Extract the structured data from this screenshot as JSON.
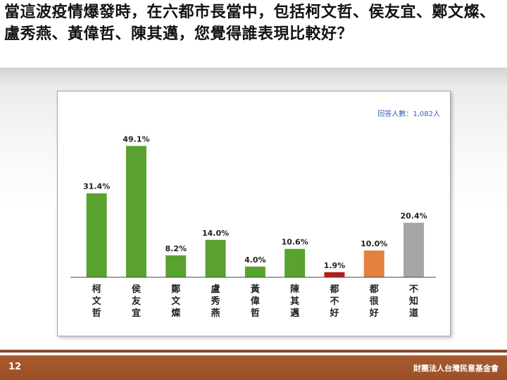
{
  "question": "當這波疫情爆發時，在六都市長當中，包括柯文哲、侯友宜、鄭文燦、盧秀燕、黃偉哲、陳其邁，您覺得誰表現比較好？",
  "respondents_note": "回答人數：1,082人",
  "footer": {
    "page_number": "12",
    "organization": "財團法人台灣民意基金會"
  },
  "chart_data": {
    "type": "bar",
    "title": "",
    "xlabel": "",
    "ylabel": "",
    "ylim": [
      0,
      55
    ],
    "grid": false,
    "legend": "none",
    "categories": [
      "柯文哲",
      "侯友宜",
      "鄭文燦",
      "盧秀燕",
      "黃偉哲",
      "陳其邁",
      "都不好",
      "都很好",
      "不知道"
    ],
    "values": [
      31.4,
      49.1,
      8.2,
      14.0,
      4.0,
      10.6,
      1.9,
      10.0,
      20.4
    ],
    "labels": [
      "31.4%",
      "49.1%",
      "8.2%",
      "14.0%",
      "4.0%",
      "10.6%",
      "1.9%",
      "10.0%",
      "20.4%"
    ],
    "colors": [
      "#59a22f",
      "#59a22f",
      "#59a22f",
      "#59a22f",
      "#59a22f",
      "#59a22f",
      "#b61a1a",
      "#e3813f",
      "#a6a6a6"
    ]
  }
}
